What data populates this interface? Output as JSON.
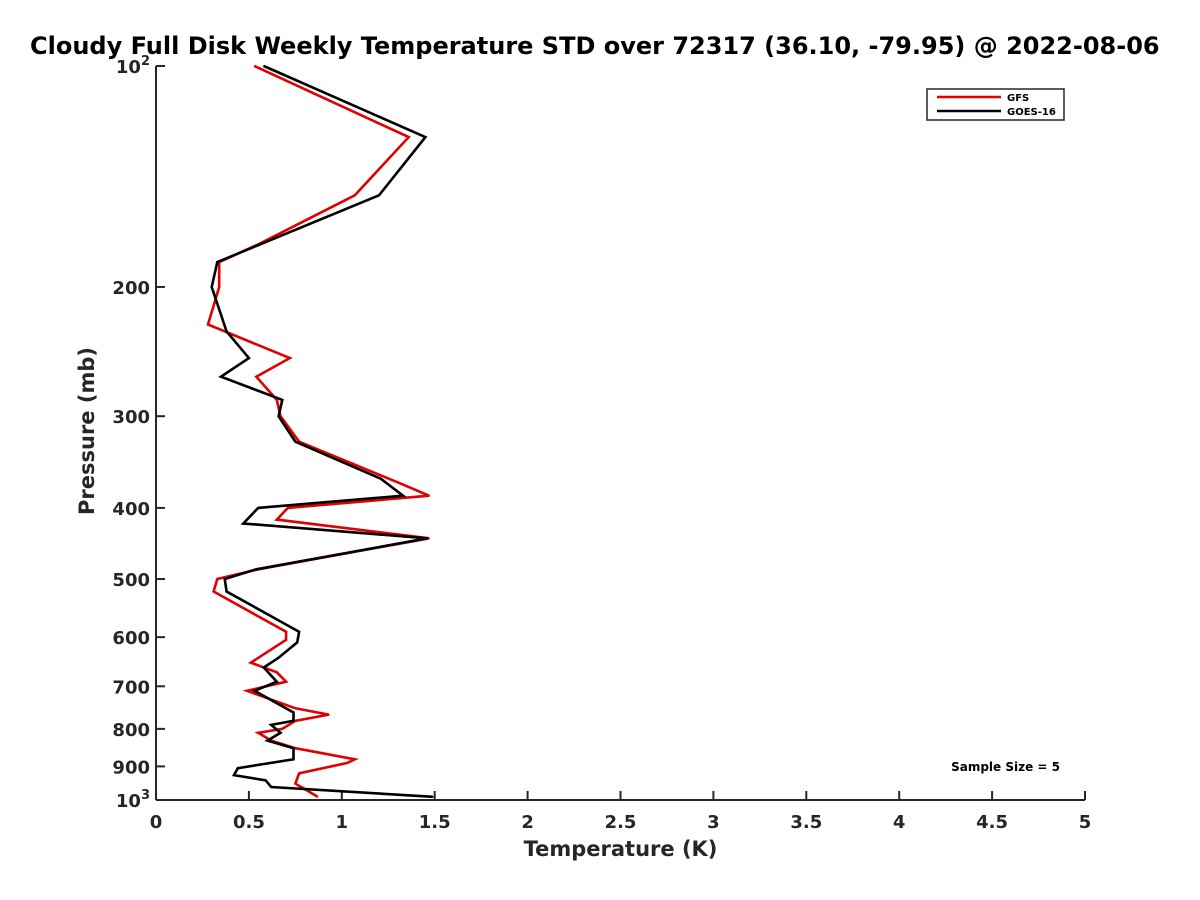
{
  "chart_data": {
    "type": "line",
    "title": "Cloudy Full Disk Weekly Temperature STD over 72317 (36.10, -79.95) @ 2022-08-06",
    "xlabel": "Temperature (K)",
    "ylabel": "Pressure (mb)",
    "xlim": [
      0,
      5
    ],
    "ylim": [
      100,
      1000
    ],
    "y_scale": "log",
    "y_reversed": true,
    "x_ticks": [
      "0",
      "0.5",
      "1",
      "1.5",
      "2",
      "2.5",
      "3",
      "3.5",
      "4",
      "4.5",
      "5"
    ],
    "y_ticks": [
      {
        "value": 100,
        "base": "10",
        "exp": "2"
      },
      {
        "value": 200,
        "label": "200"
      },
      {
        "value": 300,
        "label": "300"
      },
      {
        "value": 400,
        "label": "400"
      },
      {
        "value": 500,
        "label": "500"
      },
      {
        "value": 600,
        "label": "600"
      },
      {
        "value": 700,
        "label": "700"
      },
      {
        "value": 800,
        "label": "800"
      },
      {
        "value": 900,
        "label": "900"
      },
      {
        "value": 1000,
        "base": "10",
        "exp": "3"
      }
    ],
    "grid": false,
    "legend_position": "top-right",
    "series": [
      {
        "name": "GFS",
        "color": "#e00000",
        "points": [
          [
            0.53,
            100
          ],
          [
            1.36,
            125
          ],
          [
            1.07,
            150
          ],
          [
            0.55,
            175
          ],
          [
            0.34,
            185
          ],
          [
            0.34,
            200
          ],
          [
            0.28,
            225
          ],
          [
            0.72,
            250
          ],
          [
            0.54,
            265
          ],
          [
            0.65,
            285
          ],
          [
            0.67,
            300
          ],
          [
            0.77,
            325
          ],
          [
            1.31,
            370
          ],
          [
            1.47,
            385
          ],
          [
            0.71,
            400
          ],
          [
            0.65,
            415
          ],
          [
            1.47,
            440
          ],
          [
            0.55,
            485
          ],
          [
            0.33,
            500
          ],
          [
            0.31,
            520
          ],
          [
            0.7,
            590
          ],
          [
            0.7,
            605
          ],
          [
            0.51,
            650
          ],
          [
            0.65,
            670
          ],
          [
            0.7,
            690
          ],
          [
            0.49,
            710
          ],
          [
            0.75,
            750
          ],
          [
            0.93,
            765
          ],
          [
            0.75,
            780
          ],
          [
            0.68,
            800
          ],
          [
            0.55,
            810
          ],
          [
            0.62,
            830
          ],
          [
            0.75,
            850
          ],
          [
            1.07,
            880
          ],
          [
            1.03,
            890
          ],
          [
            0.77,
            920
          ],
          [
            0.75,
            950
          ],
          [
            0.87,
            990
          ]
        ]
      },
      {
        "name": "GOES-16",
        "color": "#000000",
        "points": [
          [
            0.58,
            100
          ],
          [
            1.45,
            125
          ],
          [
            1.2,
            150
          ],
          [
            0.56,
            175
          ],
          [
            0.33,
            185
          ],
          [
            0.3,
            200
          ],
          [
            0.38,
            230
          ],
          [
            0.5,
            250
          ],
          [
            0.35,
            265
          ],
          [
            0.68,
            285
          ],
          [
            0.66,
            300
          ],
          [
            0.75,
            325
          ],
          [
            1.21,
            365
          ],
          [
            1.33,
            385
          ],
          [
            0.55,
            400
          ],
          [
            0.47,
            420
          ],
          [
            1.46,
            440
          ],
          [
            0.54,
            485
          ],
          [
            0.37,
            500
          ],
          [
            0.38,
            520
          ],
          [
            0.77,
            590
          ],
          [
            0.76,
            610
          ],
          [
            0.66,
            640
          ],
          [
            0.58,
            660
          ],
          [
            0.65,
            690
          ],
          [
            0.53,
            710
          ],
          [
            0.74,
            760
          ],
          [
            0.74,
            780
          ],
          [
            0.62,
            790
          ],
          [
            0.67,
            810
          ],
          [
            0.6,
            830
          ],
          [
            0.74,
            850
          ],
          [
            0.74,
            880
          ],
          [
            0.44,
            905
          ],
          [
            0.42,
            925
          ],
          [
            0.59,
            940
          ],
          [
            0.62,
            960
          ],
          [
            1.49,
            990
          ]
        ]
      }
    ],
    "annotations": [
      {
        "text": "Sample Size = 5"
      }
    ]
  }
}
